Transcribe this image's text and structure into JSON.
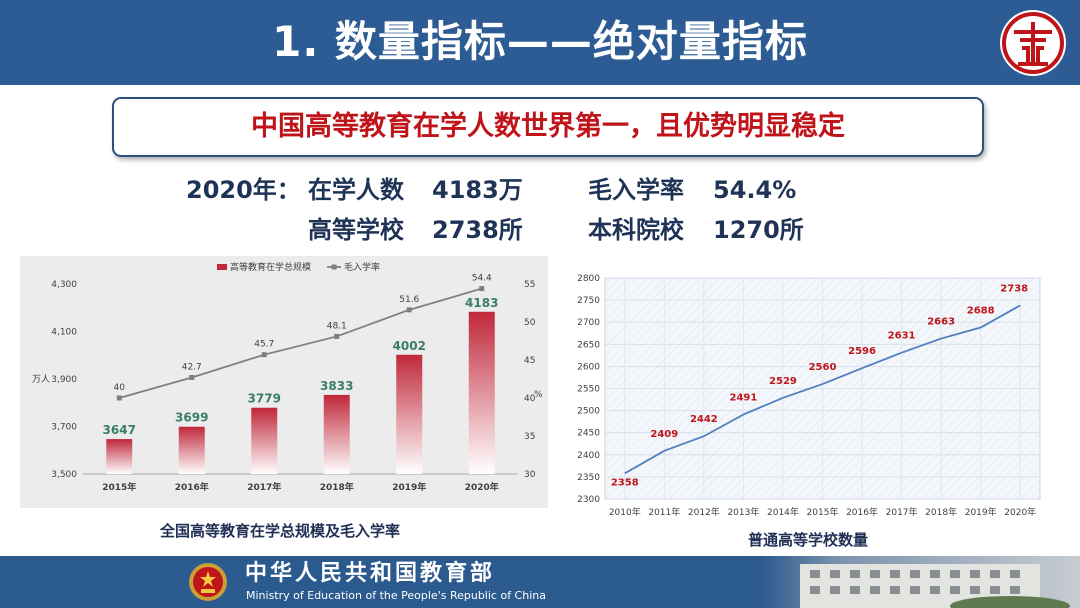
{
  "title": "1. 数量指标——绝对量指标",
  "headline": "中国高等教育在学人数世界第一，且优势明显稳定",
  "stats": {
    "year_label": "2020年：",
    "enrollment_label": "在学人数",
    "enrollment_value": "4183万",
    "gross_rate_label": "毛入学率",
    "gross_rate_value": "54.4%",
    "institutions_label": "高等学校",
    "institutions_value": "2738所",
    "undergrad_label": "本科院校",
    "undergrad_value": "1270所"
  },
  "captions": {
    "chart1": "全国高等教育在学总规模及毛入学率",
    "chart2": "普通高等学校数量"
  },
  "footer": {
    "ministry_cn": "中华人民共和国教育部",
    "ministry_en": "Ministry of Education of the People's Republic of China"
  },
  "colors": {
    "header": "#2c5c93",
    "headline_red": "#c0141b",
    "bar_red": "#c0283a",
    "bar_label_green": "#3a7d6a",
    "line_gray": "#7f7f7f",
    "line_blue": "#4f7fbf",
    "label_red": "#c0141b"
  },
  "chart_data": [
    {
      "type": "bar",
      "title": "全国高等教育在学总规模及毛入学率",
      "categories": [
        "2015年",
        "2016年",
        "2017年",
        "2018年",
        "2019年",
        "2020年"
      ],
      "series": [
        {
          "name": "高等教育在学总规模",
          "type": "bar",
          "axis": "left",
          "values": [
            3647,
            3699,
            3779,
            3833,
            4002,
            4183
          ]
        },
        {
          "name": "毛入学率",
          "type": "line",
          "axis": "right",
          "values": [
            40,
            42.7,
            45.7,
            48.1,
            51.6,
            54.4
          ]
        }
      ],
      "ylabel": "万人",
      "ylim": [
        3500,
        4300
      ],
      "yticks": [
        "3,500",
        "3,700",
        "3,900",
        "4,100",
        "4,300"
      ],
      "y2label": "%",
      "y2lim": [
        30,
        55
      ],
      "y2ticks": [
        "30",
        "35",
        "40",
        "45",
        "50",
        "55"
      ],
      "legend": "top-center",
      "grid": false
    },
    {
      "type": "line",
      "title": "普通高等学校数量",
      "categories": [
        "2010年",
        "2011年",
        "2012年",
        "2013年",
        "2014年",
        "2015年",
        "2016年",
        "2017年",
        "2018年",
        "2019年",
        "2020年"
      ],
      "values": [
        2358,
        2409,
        2442,
        2491,
        2529,
        2560,
        2596,
        2631,
        2663,
        2688,
        2738
      ],
      "ylim": [
        2300,
        2800
      ],
      "yticks": [
        "2300",
        "2350",
        "2400",
        "2450",
        "2500",
        "2550",
        "2600",
        "2650",
        "2700",
        "2750",
        "2800"
      ],
      "grid": true
    }
  ]
}
